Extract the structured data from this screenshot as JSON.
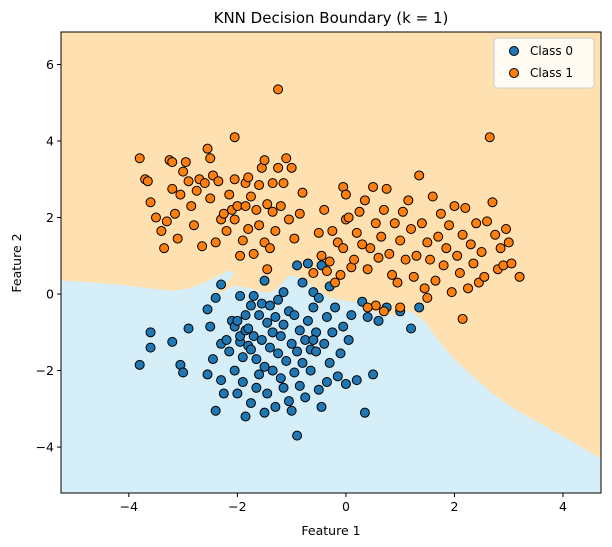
{
  "chart_data": {
    "type": "scatter",
    "title": "KNN Decision Boundary (k = 1)",
    "xlabel": "Feature 1",
    "ylabel": "Feature 2",
    "xlim": [
      -5.25,
      4.7
    ],
    "ylim": [
      -5.2,
      6.85
    ],
    "xticks": [
      -4,
      -2,
      0,
      2,
      4
    ],
    "yticks": [
      -4,
      -2,
      0,
      2,
      4,
      6
    ],
    "grid": false,
    "legend_position": "top-right",
    "region_colors": {
      "class0": "#d6eef8",
      "class1": "#ffe0b0"
    },
    "decision_boundary": [
      [
        -5.25,
        0.35
      ],
      [
        -4.8,
        0.32
      ],
      [
        -4.2,
        0.25
      ],
      [
        -3.6,
        0.15
      ],
      [
        -3.2,
        0.08
      ],
      [
        -2.9,
        0.15
      ],
      [
        -2.6,
        0.3
      ],
      [
        -2.35,
        0.48
      ],
      [
        -2.15,
        0.62
      ],
      [
        -2.05,
        0.55
      ],
      [
        -2.15,
        0.35
      ],
      [
        -2.4,
        0.05
      ],
      [
        -2.9,
        -0.15
      ],
      [
        -3.0,
        -0.22
      ],
      [
        -2.85,
        -0.12
      ],
      [
        -2.55,
        0.0
      ],
      [
        -2.3,
        0.05
      ],
      [
        -2.05,
        0.22
      ],
      [
        -1.75,
        0.15
      ],
      [
        -1.55,
        0.05
      ],
      [
        -1.35,
        0.05
      ],
      [
        -1.2,
        0.25
      ],
      [
        -1.05,
        0.48
      ],
      [
        -0.85,
        0.45
      ],
      [
        -0.65,
        0.25
      ],
      [
        -0.5,
        0.1
      ],
      [
        -0.3,
        -0.1
      ],
      [
        0.1,
        -0.2
      ],
      [
        0.3,
        -0.22
      ],
      [
        0.55,
        -0.5
      ],
      [
        0.9,
        -0.55
      ],
      [
        1.2,
        -0.45
      ],
      [
        1.45,
        -0.7
      ],
      [
        1.6,
        -1.0
      ],
      [
        1.75,
        -1.3
      ],
      [
        2.0,
        -1.7
      ],
      [
        2.3,
        -2.1
      ],
      [
        2.7,
        -2.6
      ],
      [
        3.1,
        -3.0
      ],
      [
        3.6,
        -3.4
      ],
      [
        4.1,
        -3.8
      ],
      [
        4.7,
        -4.3
      ]
    ],
    "series": [
      {
        "name": "Class 0",
        "color": "#1f77b4",
        "points": [
          [
            -3.8,
            -1.85
          ],
          [
            -3.6,
            -1.0
          ],
          [
            -3.6,
            -1.4
          ],
          [
            -3.2,
            -1.25
          ],
          [
            -3.05,
            -1.85
          ],
          [
            -3.0,
            -2.05
          ],
          [
            -2.9,
            -0.9
          ],
          [
            -2.55,
            -2.1
          ],
          [
            -2.55,
            -0.4
          ],
          [
            -2.5,
            -0.85
          ],
          [
            -2.45,
            -1.7
          ],
          [
            -2.4,
            -0.1
          ],
          [
            -2.4,
            -3.05
          ],
          [
            -2.3,
            0.25
          ],
          [
            -2.3,
            -1.3
          ],
          [
            -2.3,
            -2.25
          ],
          [
            -2.25,
            -2.6
          ],
          [
            -2.15,
            -1.5
          ],
          [
            -2.1,
            -0.7
          ],
          [
            -2.05,
            -2.0
          ],
          [
            -2.05,
            -0.85
          ],
          [
            -2.0,
            -0.7
          ],
          [
            -2.0,
            -2.6
          ],
          [
            -1.95,
            -1.25
          ],
          [
            -1.95,
            -1.1
          ],
          [
            -1.95,
            -0.05
          ],
          [
            -1.9,
            -1.65
          ],
          [
            -1.9,
            -2.3
          ],
          [
            -1.85,
            -3.2
          ],
          [
            -1.85,
            -0.95
          ],
          [
            -1.85,
            -0.55
          ],
          [
            -1.8,
            -1.35
          ],
          [
            -1.8,
            -0.9
          ],
          [
            -1.75,
            -2.85
          ],
          [
            -1.75,
            -1.45
          ],
          [
            -1.75,
            -0.3
          ],
          [
            -1.7,
            -1.1
          ],
          [
            -1.7,
            -0.05
          ],
          [
            -1.65,
            -2.45
          ],
          [
            -1.65,
            -1.7
          ],
          [
            -1.6,
            -0.55
          ],
          [
            -1.6,
            -2.1
          ],
          [
            -1.55,
            -1.2
          ],
          [
            -1.55,
            -0.25
          ],
          [
            -1.5,
            -3.1
          ],
          [
            -1.5,
            -1.9
          ],
          [
            -1.5,
            0.35
          ],
          [
            -1.45,
            -0.75
          ],
          [
            -1.45,
            -2.6
          ],
          [
            -1.4,
            -1.4
          ],
          [
            -1.4,
            -0.3
          ],
          [
            -1.35,
            -1.0
          ],
          [
            -1.35,
            -2.0
          ],
          [
            -1.3,
            -0.6
          ],
          [
            -1.3,
            -2.95
          ],
          [
            -1.25,
            -1.55
          ],
          [
            -1.25,
            -0.15
          ],
          [
            -1.2,
            -2.2
          ],
          [
            -1.2,
            -1.1
          ],
          [
            -1.15,
            -0.8
          ],
          [
            -1.15,
            -2.45
          ],
          [
            -1.1,
            -1.75
          ],
          [
            -1.05,
            -0.45
          ],
          [
            -1.05,
            -2.8
          ],
          [
            -1.0,
            -1.3
          ],
          [
            -1.0,
            -3.05
          ],
          [
            -0.95,
            -2.05
          ],
          [
            -0.95,
            -0.55
          ],
          [
            -0.9,
            -3.7
          ],
          [
            -0.9,
            -1.5
          ],
          [
            -0.9,
            0.75
          ],
          [
            -0.85,
            -0.95
          ],
          [
            -0.85,
            -2.4
          ],
          [
            -0.8,
            0.3
          ],
          [
            -0.8,
            -1.8
          ],
          [
            -0.75,
            -1.2
          ],
          [
            -0.75,
            -2.7
          ],
          [
            -0.7,
            0.8
          ],
          [
            -0.7,
            -0.7
          ],
          [
            -0.65,
            -1.45
          ],
          [
            -0.65,
            -2.0
          ],
          [
            -0.6,
            0.05
          ],
          [
            -0.6,
            -0.35
          ],
          [
            -0.55,
            -1.0
          ],
          [
            -0.55,
            -1.5
          ],
          [
            -0.5,
            -2.5
          ],
          [
            -0.5,
            -0.1
          ],
          [
            -0.45,
            -2.95
          ],
          [
            -0.45,
            0.75
          ],
          [
            -0.4,
            -1.3
          ],
          [
            -0.35,
            -2.3
          ],
          [
            -0.35,
            -0.6
          ],
          [
            -0.3,
            -1.8
          ],
          [
            -0.3,
            0.2
          ],
          [
            -0.25,
            -1.0
          ],
          [
            -0.2,
            -0.35
          ],
          [
            -0.15,
            -2.15
          ],
          [
            -0.1,
            -1.55
          ],
          [
            -0.05,
            -0.85
          ],
          [
            0.0,
            -2.35
          ],
          [
            0.05,
            -1.2
          ],
          [
            0.1,
            -0.55
          ],
          [
            0.2,
            -2.25
          ],
          [
            0.3,
            -0.2
          ],
          [
            0.35,
            -3.1
          ],
          [
            0.4,
            -0.6
          ],
          [
            0.5,
            -2.1
          ],
          [
            0.6,
            -0.7
          ],
          [
            0.75,
            -0.35
          ],
          [
            1.0,
            -0.45
          ],
          [
            1.2,
            -0.9
          ],
          [
            1.35,
            -0.35
          ],
          [
            -2.2,
            -1.2
          ],
          [
            -1.15,
            0.05
          ],
          [
            -0.6,
            -1.2
          ]
        ]
      },
      {
        "name": "Class 1",
        "color": "#ff7f0e",
        "points": [
          [
            -1.25,
            5.35
          ],
          [
            -2.05,
            4.1
          ],
          [
            -3.8,
            3.55
          ],
          [
            -3.7,
            3.0
          ],
          [
            -3.65,
            2.95
          ],
          [
            -3.6,
            2.4
          ],
          [
            -3.5,
            2.0
          ],
          [
            -3.4,
            1.65
          ],
          [
            -3.35,
            1.2
          ],
          [
            -3.3,
            1.9
          ],
          [
            -3.25,
            3.5
          ],
          [
            -3.2,
            3.45
          ],
          [
            -3.2,
            2.75
          ],
          [
            -3.15,
            2.1
          ],
          [
            -3.1,
            1.45
          ],
          [
            -3.05,
            2.6
          ],
          [
            -3.0,
            3.2
          ],
          [
            -2.95,
            3.45
          ],
          [
            -2.9,
            2.95
          ],
          [
            -2.85,
            2.3
          ],
          [
            -2.8,
            1.8
          ],
          [
            -2.75,
            2.7
          ],
          [
            -2.7,
            3.0
          ],
          [
            -2.65,
            1.25
          ],
          [
            -2.6,
            2.9
          ],
          [
            -2.55,
            3.8
          ],
          [
            -2.5,
            3.55
          ],
          [
            -2.5,
            2.5
          ],
          [
            -2.45,
            3.1
          ],
          [
            -2.4,
            1.35
          ],
          [
            -2.35,
            2.95
          ],
          [
            -2.3,
            1.95
          ],
          [
            -2.25,
            2.1
          ],
          [
            -2.2,
            1.65
          ],
          [
            -2.15,
            2.6
          ],
          [
            -2.1,
            2.2
          ],
          [
            -2.05,
            3.0
          ],
          [
            -2.05,
            1.95
          ],
          [
            -2.0,
            2.3
          ],
          [
            -1.95,
            1.0
          ],
          [
            -1.9,
            1.4
          ],
          [
            -1.85,
            2.9
          ],
          [
            -1.85,
            2.3
          ],
          [
            -1.8,
            3.05
          ],
          [
            -1.8,
            1.7
          ],
          [
            -1.75,
            2.55
          ],
          [
            -1.7,
            1.05
          ],
          [
            -1.65,
            2.2
          ],
          [
            -1.6,
            1.8
          ],
          [
            -1.6,
            2.85
          ],
          [
            -1.55,
            3.3
          ],
          [
            -1.5,
            3.5
          ],
          [
            -1.5,
            1.35
          ],
          [
            -1.45,
            2.35
          ],
          [
            -1.45,
            0.65
          ],
          [
            -1.4,
            1.2
          ],
          [
            -1.35,
            2.15
          ],
          [
            -1.35,
            2.9
          ],
          [
            -1.3,
            1.65
          ],
          [
            -1.25,
            3.3
          ],
          [
            -1.2,
            2.3
          ],
          [
            -1.15,
            2.9
          ],
          [
            -1.1,
            3.55
          ],
          [
            -1.05,
            1.95
          ],
          [
            -1.0,
            3.3
          ],
          [
            -0.95,
            1.45
          ],
          [
            -0.85,
            2.1
          ],
          [
            -0.8,
            2.65
          ],
          [
            -0.6,
            0.55
          ],
          [
            -0.5,
            1.6
          ],
          [
            -0.45,
            1.0
          ],
          [
            -0.4,
            2.2
          ],
          [
            -0.35,
            0.6
          ],
          [
            -0.3,
            0.85
          ],
          [
            -0.25,
            1.65
          ],
          [
            -0.2,
            0.3
          ],
          [
            -0.15,
            1.35
          ],
          [
            -0.1,
            0.5
          ],
          [
            -0.05,
            1.2
          ],
          [
            0.0,
            1.95
          ],
          [
            0.05,
            2.0
          ],
          [
            0.1,
            0.7
          ],
          [
            0.15,
            0.9
          ],
          [
            0.2,
            1.6
          ],
          [
            0.25,
            2.15
          ],
          [
            0.3,
            1.3
          ],
          [
            0.35,
            2.45
          ],
          [
            0.4,
            0.65
          ],
          [
            0.45,
            1.2
          ],
          [
            0.5,
            2.8
          ],
          [
            0.55,
            1.85
          ],
          [
            0.6,
            0.95
          ],
          [
            0.65,
            1.5
          ],
          [
            0.7,
            2.2
          ],
          [
            0.75,
            2.75
          ],
          [
            0.8,
            1.05
          ],
          [
            0.85,
            0.5
          ],
          [
            0.9,
            1.85
          ],
          [
            0.95,
            0.3
          ],
          [
            1.0,
            1.4
          ],
          [
            1.05,
            2.15
          ],
          [
            1.1,
            0.9
          ],
          [
            1.15,
            2.45
          ],
          [
            1.2,
            1.7
          ],
          [
            1.25,
            0.45
          ],
          [
            1.3,
            1.0
          ],
          [
            1.35,
            3.1
          ],
          [
            1.4,
            1.85
          ],
          [
            1.45,
            0.15
          ],
          [
            1.5,
            1.35
          ],
          [
            1.55,
            0.9
          ],
          [
            1.6,
            2.55
          ],
          [
            1.65,
            0.35
          ],
          [
            1.7,
            1.5
          ],
          [
            1.75,
            2.1
          ],
          [
            1.8,
            0.75
          ],
          [
            1.85,
            1.2
          ],
          [
            1.9,
            1.8
          ],
          [
            1.95,
            0.05
          ],
          [
            2.0,
            2.3
          ],
          [
            2.05,
            1.0
          ],
          [
            2.1,
            0.55
          ],
          [
            2.15,
            1.55
          ],
          [
            2.2,
            2.25
          ],
          [
            2.25,
            0.15
          ],
          [
            2.3,
            1.3
          ],
          [
            2.35,
            0.8
          ],
          [
            2.4,
            1.85
          ],
          [
            2.45,
            0.3
          ],
          [
            2.5,
            1.1
          ],
          [
            2.55,
            0.45
          ],
          [
            2.6,
            1.9
          ],
          [
            2.65,
            4.1
          ],
          [
            2.7,
            2.4
          ],
          [
            2.75,
            1.55
          ],
          [
            2.8,
            0.65
          ],
          [
            2.85,
            1.2
          ],
          [
            2.9,
            0.75
          ],
          [
            2.95,
            1.7
          ],
          [
            3.0,
            1.35
          ],
          [
            3.05,
            0.8
          ],
          [
            3.2,
            0.45
          ],
          [
            -0.05,
            2.8
          ],
          [
            0.0,
            2.6
          ],
          [
            1.0,
            -0.35
          ],
          [
            0.55,
            -0.3
          ],
          [
            0.7,
            -0.45
          ],
          [
            1.5,
            -0.1
          ],
          [
            2.15,
            -0.65
          ],
          [
            0.4,
            -0.35
          ]
        ]
      }
    ]
  }
}
